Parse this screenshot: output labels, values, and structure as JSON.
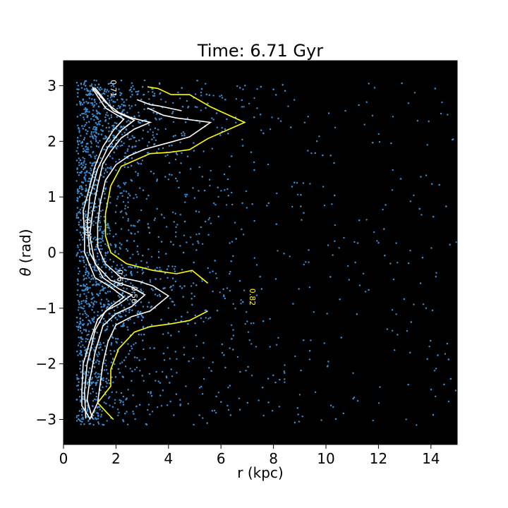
{
  "chart_data": {
    "type": "scatter",
    "title": "Time: 6.71 Gyr",
    "xlabel": "r (kpc)",
    "ylabel": "(rad)",
    "ylabel_symbol": "θ",
    "xlim": [
      0,
      15
    ],
    "ylim": [
      -3.45,
      3.45
    ],
    "xticks": [
      0,
      2,
      4,
      6,
      8,
      10,
      12,
      14
    ],
    "yticks": [
      3,
      2,
      1,
      0,
      -1,
      -2,
      -3
    ],
    "ytick_labels": [
      "3",
      "2",
      "1",
      "0",
      "−1",
      "−2",
      "−3"
    ],
    "background": "#000000",
    "point_color": "#3a8fd6",
    "point_count": 3200,
    "contours": [
      {
        "level": "0.82",
        "color": "#ffff00",
        "label_pos": [
          7.1,
          -0.8
        ],
        "segments": [
          [
            [
              3.2,
              2.98
            ],
            [
              3.6,
              2.95
            ],
            [
              4.1,
              2.84
            ],
            [
              4.8,
              2.84
            ],
            [
              5.6,
              2.62
            ],
            [
              6.9,
              2.34
            ],
            [
              5.5,
              2.05
            ],
            [
              4.8,
              1.85
            ],
            [
              4.0,
              1.8
            ],
            [
              3.3,
              1.78
            ],
            [
              2.2,
              1.55
            ],
            [
              1.8,
              1.2
            ],
            [
              1.6,
              0.7
            ],
            [
              1.6,
              0.3
            ],
            [
              1.8,
              0.0
            ],
            [
              2.4,
              -0.2
            ],
            [
              3.4,
              -0.32
            ],
            [
              4.3,
              -0.38
            ],
            [
              4.9,
              -0.32
            ],
            [
              5.5,
              -0.55
            ]
          ],
          [
            [
              5.5,
              -1.05
            ],
            [
              4.8,
              -1.22
            ],
            [
              4.1,
              -1.28
            ],
            [
              3.3,
              -1.33
            ],
            [
              2.7,
              -1.43
            ],
            [
              2.1,
              -1.73
            ],
            [
              1.8,
              -2.1
            ],
            [
              1.8,
              -2.4
            ],
            [
              1.3,
              -2.7
            ],
            [
              1.9,
              -3.0
            ]
          ]
        ]
      },
      {
        "level": "0.71",
        "color": "#ffffff",
        "label_pos": [
          1.8,
          2.95
        ],
        "segments": [
          [
            [
              3.2,
              2.6
            ],
            [
              3.8,
              2.47
            ],
            [
              4.3,
              2.42
            ],
            [
              5.6,
              2.34
            ],
            [
              4.8,
              2.08
            ],
            [
              4.2,
              2.0
            ],
            [
              3.8,
              1.95
            ],
            [
              3.1,
              1.86
            ],
            [
              2.5,
              1.74
            ],
            [
              2.0,
              1.58
            ],
            [
              1.6,
              1.3
            ],
            [
              1.4,
              0.9
            ],
            [
              1.3,
              0.5
            ],
            [
              1.3,
              0.1
            ],
            [
              1.6,
              -0.2
            ],
            [
              2.2,
              -0.45
            ],
            [
              2.9,
              -0.52
            ],
            [
              3.4,
              -0.6
            ],
            [
              4.0,
              -0.78
            ],
            [
              3.3,
              -1.05
            ],
            [
              2.6,
              -1.15
            ],
            [
              2.0,
              -1.3
            ],
            [
              1.7,
              -1.6
            ],
            [
              1.5,
              -2.0
            ],
            [
              1.4,
              -2.35
            ],
            [
              1.3,
              -2.7
            ],
            [
              1.0,
              -3.0
            ]
          ],
          [
            [
              2.8,
              2.75
            ],
            [
              3.3,
              2.66
            ],
            [
              3.6,
              2.64
            ],
            [
              4.0,
              2.6
            ],
            [
              4.5,
              2.55
            ]
          ]
        ]
      },
      {
        "level": "0.62",
        "color": "#ffffff",
        "label_pos": [
          2.05,
          -0.46
        ],
        "segments": [
          [
            [
              1.1,
              2.98
            ],
            [
              1.6,
              2.7
            ],
            [
              2.1,
              2.52
            ],
            [
              2.6,
              2.42
            ],
            [
              3.3,
              2.34
            ],
            [
              2.7,
              2.22
            ],
            [
              2.2,
              2.06
            ],
            [
              1.8,
              1.82
            ],
            [
              1.5,
              1.6
            ],
            [
              1.3,
              1.2
            ],
            [
              1.1,
              0.7
            ],
            [
              1.0,
              0.3
            ],
            [
              1.2,
              -0.2
            ],
            [
              1.8,
              -0.5
            ],
            [
              2.6,
              -0.62
            ],
            [
              3.1,
              -0.76
            ],
            [
              2.6,
              -0.97
            ],
            [
              2.0,
              -1.1
            ],
            [
              1.5,
              -1.32
            ],
            [
              1.2,
              -1.8
            ],
            [
              1.0,
              -2.3
            ],
            [
              0.9,
              -2.65
            ],
            [
              1.1,
              -2.98
            ]
          ]
        ]
      },
      {
        "level": "0.56",
        "color": "#ffffff",
        "label_pos": [
          2.6,
          -0.76
        ],
        "segments": [
          [
            [
              1.2,
              2.96
            ],
            [
              1.9,
              2.55
            ],
            [
              2.7,
              2.38
            ],
            [
              2.2,
              2.2
            ],
            [
              1.7,
              1.9
            ],
            [
              1.3,
              1.5
            ],
            [
              1.0,
              1.0
            ],
            [
              0.9,
              0.5
            ],
            [
              1.0,
              0.0
            ],
            [
              1.5,
              -0.45
            ],
            [
              2.1,
              -0.65
            ],
            [
              2.6,
              -0.76
            ],
            [
              2.1,
              -0.93
            ],
            [
              1.6,
              -1.05
            ],
            [
              1.2,
              -1.4
            ],
            [
              0.9,
              -2.0
            ],
            [
              0.8,
              -2.5
            ],
            [
              0.85,
              -2.98
            ]
          ]
        ]
      },
      {
        "level": "0.50",
        "color": "#ffffff",
        "label_pos": [
          0.82,
          0.45
        ],
        "segments": [
          [
            [
              1.1,
              2.95
            ],
            [
              1.6,
              2.6
            ],
            [
              2.3,
              2.4
            ],
            [
              1.9,
              2.2
            ],
            [
              1.5,
              1.9
            ],
            [
              1.2,
              1.55
            ],
            [
              0.95,
              1.1
            ],
            [
              0.75,
              0.75
            ],
            [
              0.8,
              0.3
            ],
            [
              0.8,
              0.0
            ],
            [
              1.2,
              -0.45
            ],
            [
              1.8,
              -0.62
            ],
            [
              2.3,
              -0.8
            ],
            [
              1.8,
              -0.97
            ],
            [
              1.3,
              -1.2
            ],
            [
              1.0,
              -1.6
            ],
            [
              0.75,
              -2.0
            ],
            [
              0.7,
              -2.5
            ],
            [
              0.7,
              -2.75
            ],
            [
              1.0,
              -2.98
            ]
          ]
        ]
      }
    ]
  }
}
